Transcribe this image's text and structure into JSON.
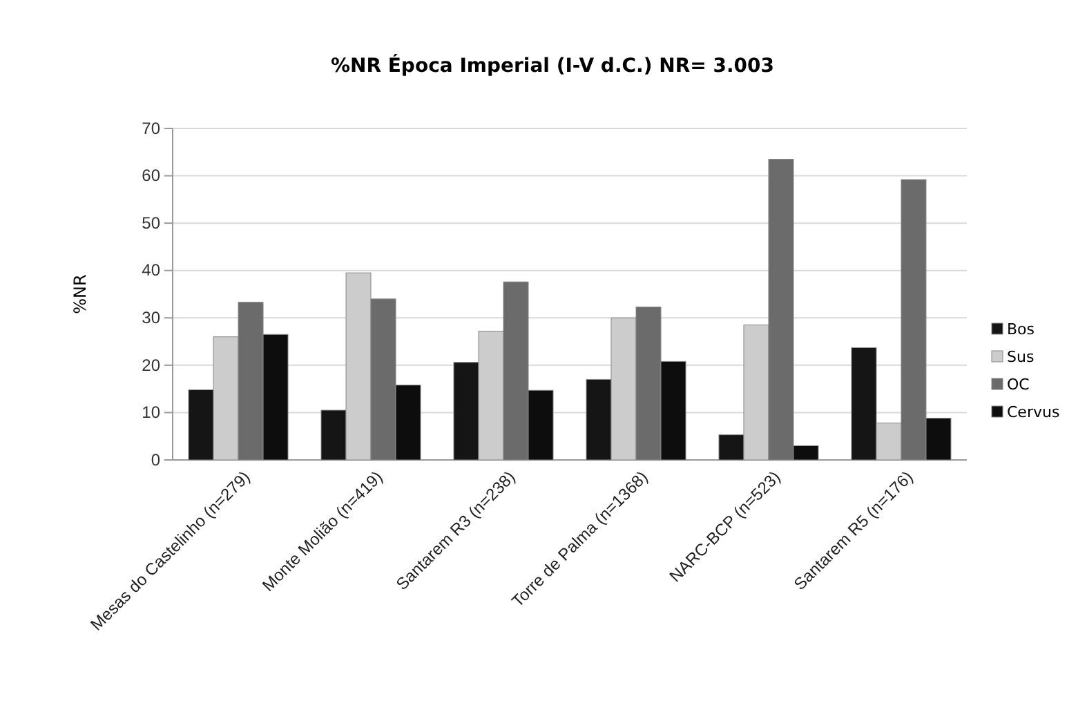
{
  "chart_data": {
    "type": "bar",
    "title": "%NR Época Imperial (I-V d.C.)    NR= 3.003",
    "ylabel": "%NR",
    "categories": [
      "Mesas do Castelinho (n=279)",
      "Monte Molião (n=419)",
      "Santarem R3 (n=238)",
      "Torre de Palma (n=1368)",
      "NARC-BCP (n=523)",
      "Santarem R5 (n=176)"
    ],
    "series": [
      {
        "name": "Bos",
        "color": "#151515",
        "values": [
          14.8,
          10.5,
          20.6,
          17,
          5.3,
          23.7
        ]
      },
      {
        "name": "Sus",
        "color": "#cccccc",
        "values": [
          26,
          39.5,
          27.2,
          30,
          28.5,
          7.8
        ]
      },
      {
        "name": "OC",
        "color": "#6b6b6b",
        "values": [
          33.3,
          34,
          37.6,
          32.3,
          63.5,
          59.2
        ]
      },
      {
        "name": "Cervus",
        "color": "#0d0d0d",
        "values": [
          26.5,
          15.8,
          14.7,
          20.8,
          3,
          8.8
        ]
      }
    ],
    "ylim": [
      0,
      70
    ],
    "yticks": [
      0,
      10,
      20,
      30,
      40,
      50,
      60,
      70
    ],
    "grid": "y",
    "legend": "right"
  }
}
